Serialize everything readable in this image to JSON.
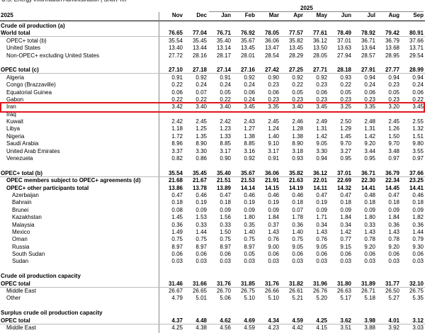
{
  "header": {
    "source": "U.S. Energy Information Administration  |  Short-Ter",
    "left_label": "2025",
    "year": "2025",
    "months": [
      "Nov",
      "Dec",
      "Jan",
      "Feb",
      "Mar",
      "Apr",
      "May",
      "Jun",
      "Jul",
      "Aug",
      "Sep"
    ]
  },
  "groups": [
    {
      "title": "Crude oil production (a)",
      "rows": [
        {
          "label": "World total",
          "bold": true,
          "indent": 0,
          "values": [
            "76.65",
            "77.04",
            "76.71",
            "76.92",
            "78.05",
            "77.57",
            "77.61",
            "78.49",
            "78.92",
            "79.42",
            "80.91"
          ]
        },
        {
          "label": "OPEC+ total (b)",
          "indent": 1,
          "values": [
            "35.54",
            "35.45",
            "35.40",
            "35.67",
            "36.06",
            "35.82",
            "36.12",
            "37.01",
            "36.71",
            "36.79",
            "37.66"
          ]
        },
        {
          "label": "United States",
          "indent": 1,
          "values": [
            "13.40",
            "13.44",
            "13.14",
            "13.45",
            "13.47",
            "13.45",
            "13.50",
            "13.63",
            "13.64",
            "13.68",
            "13.71"
          ]
        },
        {
          "label": "Non-OPEC+ excluding United States",
          "indent": 1,
          "values": [
            "27.72",
            "28.16",
            "28.17",
            "28.01",
            "28.54",
            "28.29",
            "28.05",
            "27.94",
            "28.57",
            "28.95",
            "29.54"
          ]
        }
      ]
    },
    {
      "rows": [
        {
          "label": "OPEC total (c)",
          "bold": true,
          "indent": 0,
          "values": [
            "27.10",
            "27.18",
            "27.14",
            "27.16",
            "27.42",
            "27.25",
            "27.71",
            "28.18",
            "27.91",
            "27.77",
            "28.99"
          ]
        },
        {
          "label": "Algeria",
          "indent": 1,
          "values": [
            "0.91",
            "0.92",
            "0.91",
            "0.92",
            "0.90",
            "0.92",
            "0.92",
            "0.93",
            "0.94",
            "0.94",
            "0.94"
          ]
        },
        {
          "label": "Congo (Brazzaville)",
          "indent": 1,
          "values": [
            "0.22",
            "0.24",
            "0.24",
            "0.24",
            "0.23",
            "0.22",
            "0.23",
            "0.22",
            "0.24",
            "0.23",
            "0.24"
          ]
        },
        {
          "label": "Equatorial Guinea",
          "indent": 1,
          "values": [
            "0.06",
            "0.07",
            "0.05",
            "0.06",
            "0.06",
            "0.05",
            "0.06",
            "0.05",
            "0.06",
            "0.05",
            "0.06"
          ]
        },
        {
          "label": "Gabon",
          "indent": 1,
          "values": [
            "0.22",
            "0.22",
            "0.22",
            "0.24",
            "0.23",
            "0.23",
            "0.23",
            "0.23",
            "0.23",
            "0.23",
            "0.22"
          ]
        },
        {
          "label": "Iran",
          "indent": 1,
          "highlight": true,
          "values": [
            "3.42",
            "3.40",
            "3.40",
            "3.45",
            "3.35",
            "3.40",
            "3.45",
            "3.25",
            "3.35",
            "3.20",
            "3.45"
          ]
        },
        {
          "label": "Iraq",
          "indent": 1
        },
        {
          "label": "Kuwait",
          "indent": 1,
          "values": [
            "2.42",
            "2.45",
            "2.42",
            "2.43",
            "2.45",
            "2.46",
            "2.49",
            "2.50",
            "2.48",
            "2.45",
            "2.55"
          ]
        },
        {
          "label": "Libya",
          "indent": 1,
          "values": [
            "1.18",
            "1.25",
            "1.23",
            "1.27",
            "1.24",
            "1.28",
            "1.31",
            "1.29",
            "1.31",
            "1.26",
            "1.32"
          ]
        },
        {
          "label": "Nigeria",
          "indent": 1,
          "values": [
            "1.72",
            "1.35",
            "1.33",
            "1.38",
            "1.40",
            "1.38",
            "1.42",
            "1.45",
            "1.42",
            "1.50",
            "1.51"
          ]
        },
        {
          "label": "Saudi Arabia",
          "indent": 1,
          "values": [
            "8.96",
            "8.90",
            "8.85",
            "8.85",
            "9.10",
            "8.90",
            "9.05",
            "9.70",
            "9.20",
            "9.70",
            "9.80"
          ]
        },
        {
          "label": "United Arab Emirates",
          "indent": 1,
          "values": [
            "3.37",
            "3.30",
            "3.17",
            "3.16",
            "3.17",
            "3.18",
            "3.30",
            "3.27",
            "3.44",
            "3.48",
            "3.55"
          ]
        },
        {
          "label": "Venezuela",
          "indent": 1,
          "values": [
            "0.82",
            "0.86",
            "0.90",
            "0.92",
            "0.91",
            "0.93",
            "0.94",
            "0.95",
            "0.95",
            "0.97",
            "0.97"
          ]
        }
      ]
    },
    {
      "rows": [
        {
          "label": "OPEC+ total (b)",
          "bold": true,
          "indent": 0,
          "values": [
            "35.54",
            "35.45",
            "35.40",
            "35.67",
            "36.06",
            "35.82",
            "36.12",
            "37.01",
            "36.71",
            "36.79",
            "37.66"
          ]
        },
        {
          "label": "OPEC members subject to OPEC+ agreements (d)",
          "bold": true,
          "indent": 1,
          "values": [
            "21.68",
            "21.67",
            "21.51",
            "21.53",
            "21.91",
            "21.63",
            "22.01",
            "22.69",
            "22.30",
            "22.34",
            "23.25"
          ]
        },
        {
          "label": "OPEC+ other participants total",
          "bold": true,
          "indent": 1,
          "values": [
            "13.86",
            "13.78",
            "13.89",
            "14.14",
            "14.15",
            "14.19",
            "14.11",
            "14.32",
            "14.41",
            "14.45",
            "14.41"
          ]
        },
        {
          "label": "Azerbaijan",
          "indent": 2,
          "values": [
            "0.47",
            "0.46",
            "0.47",
            "0.46",
            "0.46",
            "0.46",
            "0.47",
            "0.47",
            "0.48",
            "0.47",
            "0.46"
          ]
        },
        {
          "label": "Bahrain",
          "indent": 2,
          "values": [
            "0.18",
            "0.19",
            "0.18",
            "0.19",
            "0.19",
            "0.18",
            "0.19",
            "0.18",
            "0.18",
            "0.18",
            "0.18"
          ]
        },
        {
          "label": "Brunei",
          "indent": 2,
          "values": [
            "0.08",
            "0.09",
            "0.09",
            "0.09",
            "0.09",
            "0.07",
            "0.09",
            "0.09",
            "0.09",
            "0.09",
            "0.09"
          ]
        },
        {
          "label": "Kazakhstan",
          "indent": 2,
          "values": [
            "1.45",
            "1.53",
            "1.56",
            "1.80",
            "1.84",
            "1.78",
            "1.71",
            "1.84",
            "1.80",
            "1.84",
            "1.82"
          ]
        },
        {
          "label": "Malaysia",
          "indent": 2,
          "values": [
            "0.36",
            "0.33",
            "0.33",
            "0.35",
            "0.37",
            "0.36",
            "0.34",
            "0.34",
            "0.33",
            "0.36",
            "0.36"
          ]
        },
        {
          "label": "Mexico",
          "indent": 2,
          "values": [
            "1.49",
            "1.44",
            "1.50",
            "1.40",
            "1.43",
            "1.40",
            "1.43",
            "1.42",
            "1.43",
            "1.43",
            "1.44"
          ]
        },
        {
          "label": "Oman",
          "indent": 2,
          "values": [
            "0.75",
            "0.75",
            "0.75",
            "0.75",
            "0.76",
            "0.75",
            "0.76",
            "0.77",
            "0.78",
            "0.78",
            "0.79"
          ]
        },
        {
          "label": "Russia",
          "indent": 2,
          "values": [
            "8.97",
            "8.97",
            "8.97",
            "8.97",
            "9.00",
            "9.05",
            "9.05",
            "9.15",
            "9.20",
            "9.20",
            "9.30"
          ]
        },
        {
          "label": "South Sudan",
          "indent": 2,
          "values": [
            "0.06",
            "0.06",
            "0.06",
            "0.05",
            "0.06",
            "0.06",
            "0.06",
            "0.06",
            "0.06",
            "0.06",
            "0.06"
          ]
        },
        {
          "label": "Sudan",
          "indent": 2,
          "values": [
            "0.03",
            "0.03",
            "0.03",
            "0.03",
            "0.03",
            "0.03",
            "0.03",
            "0.03",
            "0.03",
            "0.03",
            "0.03"
          ]
        }
      ]
    },
    {
      "title": "Crude oil production capacity",
      "rows": [
        {
          "label": "OPEC total",
          "bold": true,
          "indent": 0,
          "values": [
            "31.46",
            "31.66",
            "31.76",
            "31.85",
            "31.76",
            "31.82",
            "31.96",
            "31.80",
            "31.89",
            "31.77",
            "32.10"
          ]
        },
        {
          "label": "Middle East",
          "indent": 1,
          "values": [
            "26.67",
            "26.65",
            "26.70",
            "26.75",
            "26.66",
            "26.61",
            "26.76",
            "26.63",
            "26.71",
            "26.50",
            "26.75"
          ]
        },
        {
          "label": "Other",
          "indent": 1,
          "values": [
            "4.79",
            "5.01",
            "5.06",
            "5.10",
            "5.10",
            "5.21",
            "5.20",
            "5.17",
            "5.18",
            "5.27",
            "5.35"
          ]
        }
      ]
    },
    {
      "title": "Surplus crude oil production capacity",
      "rows": [
        {
          "label": "OPEC total",
          "bold": true,
          "indent": 0,
          "values": [
            "4.37",
            "4.48",
            "4.62",
            "4.69",
            "4.34",
            "4.59",
            "4.25",
            "3.62",
            "3.98",
            "4.01",
            "3.12"
          ]
        },
        {
          "label": "Middle East",
          "indent": 1,
          "values": [
            "4.25",
            "4.38",
            "4.56",
            "4.59",
            "4.23",
            "4.42",
            "4.15",
            "3.51",
            "3.88",
            "3.92",
            "3.03"
          ]
        }
      ]
    }
  ]
}
